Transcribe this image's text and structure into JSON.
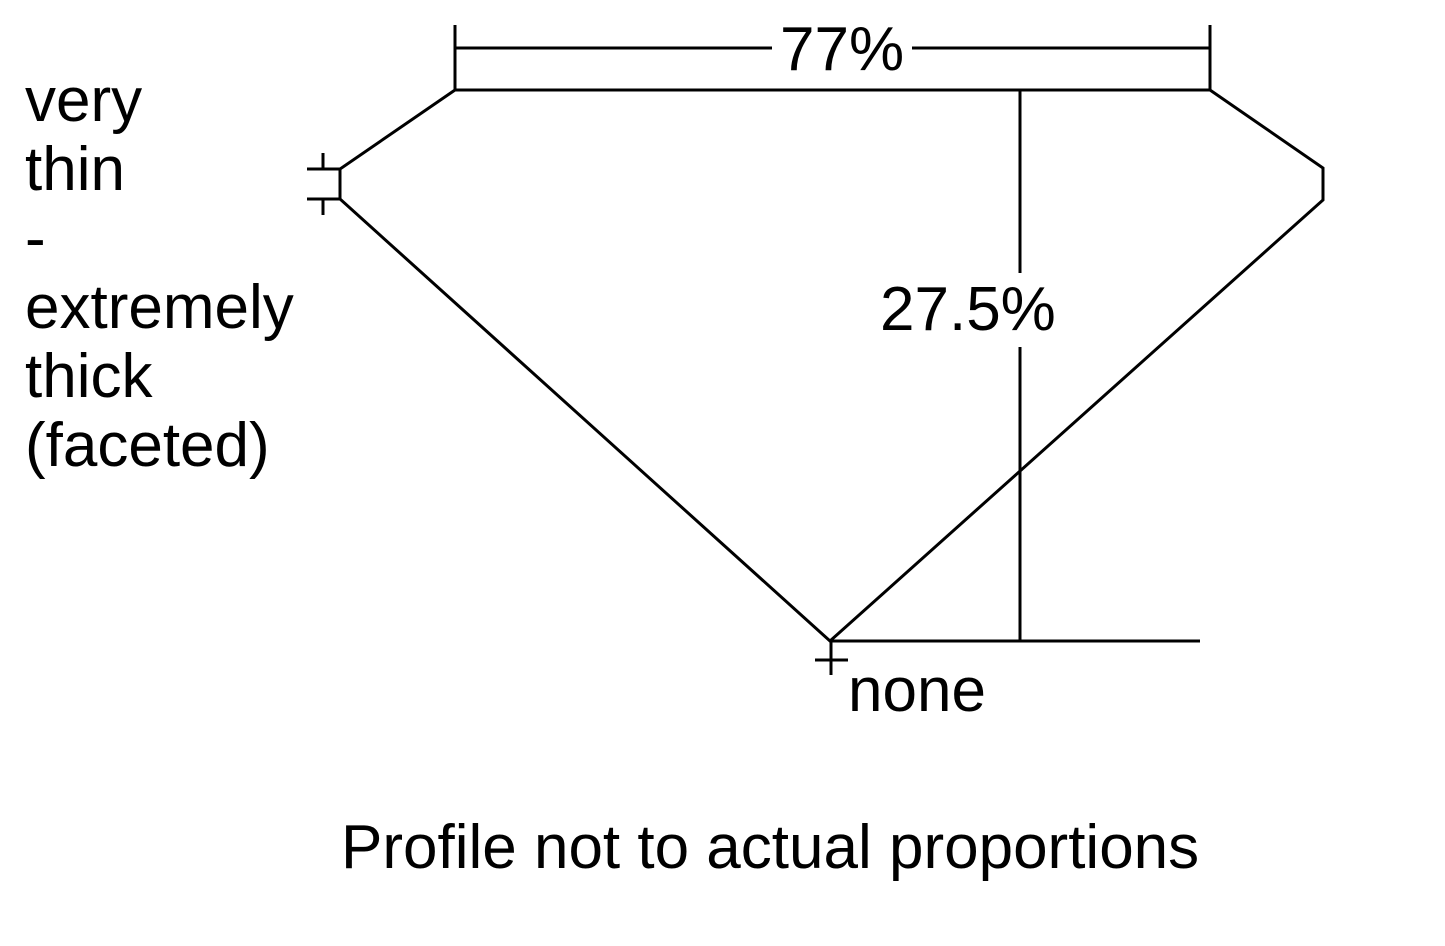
{
  "girdle_label_lines": [
    "very",
    "thin",
    "-",
    "extremely",
    "thick",
    "(faceted)"
  ],
  "table_percent": "77%",
  "depth_percent": "27.5%",
  "culet_label": "none",
  "caption": "Profile not to actual proportions"
}
